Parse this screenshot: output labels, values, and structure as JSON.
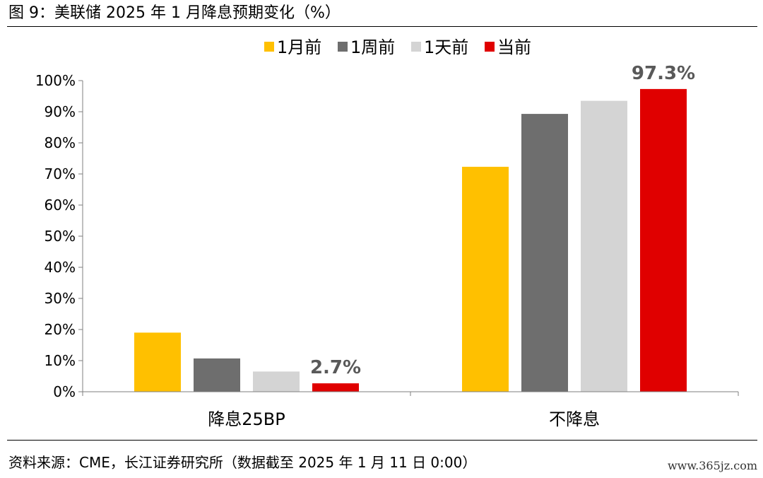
{
  "header": {
    "title": "图 9：美联储 2025 年 1 月降息预期变化（%）"
  },
  "footer": {
    "source": "资料来源：CME，长江证券研究所（数据截至 2025 年 1 月 11 日 0:00）",
    "watermark": "www.365jz.com"
  },
  "chart_data": {
    "type": "bar",
    "categories": [
      "降息25BP",
      "不降息"
    ],
    "series": [
      {
        "name": "1月前",
        "color": "#FFC000",
        "values": [
          19.0,
          72.3
        ]
      },
      {
        "name": "1周前",
        "color": "#6E6E6E",
        "values": [
          10.7,
          89.3
        ]
      },
      {
        "name": "1天前",
        "color": "#D4D4D4",
        "values": [
          6.5,
          93.5
        ]
      },
      {
        "name": "当前",
        "color": "#E00000",
        "values": [
          2.7,
          97.3
        ]
      }
    ],
    "ylim": [
      0,
      100
    ],
    "yticks": [
      "0%",
      "10%",
      "20%",
      "30%",
      "40%",
      "50%",
      "60%",
      "70%",
      "80%",
      "90%",
      "100%"
    ],
    "data_labels": [
      {
        "series": 3,
        "category": 0,
        "text": "2.7%"
      },
      {
        "series": 3,
        "category": 1,
        "text": "97.3%"
      }
    ],
    "legend": "top",
    "grid": false
  }
}
